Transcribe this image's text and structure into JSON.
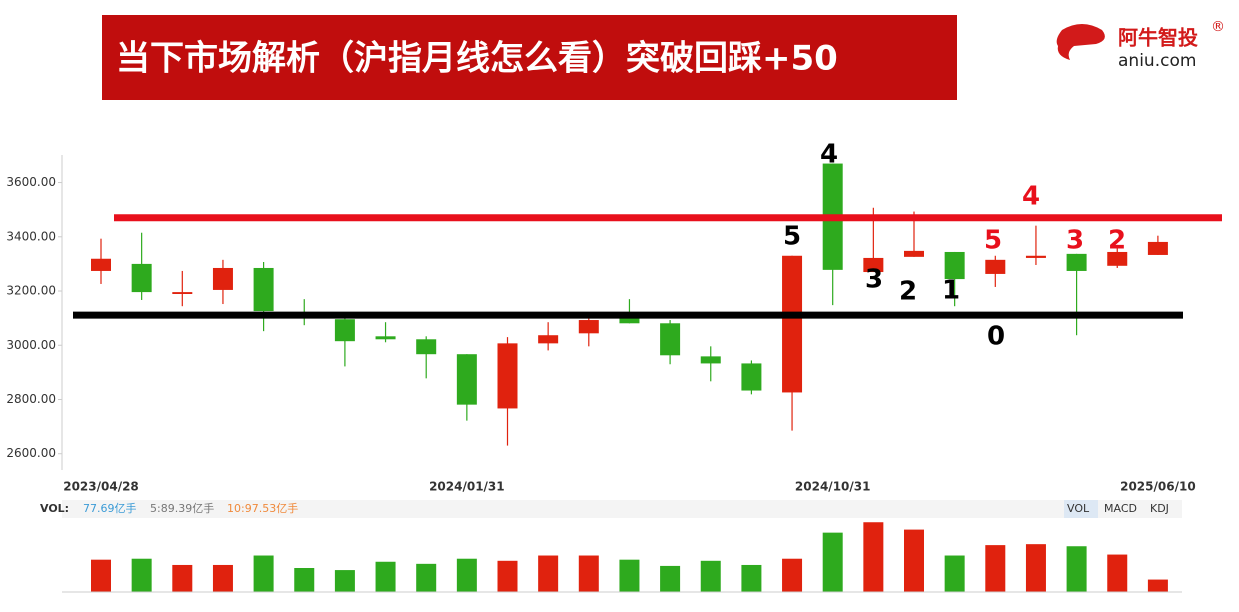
{
  "header": {
    "title": "当下市场解析（沪指月线怎么看）突破回踩+50",
    "logo_cn": "阿牛智投",
    "logo_mark": "®",
    "logo_en": "aniu.com"
  },
  "chart_data": [
    {
      "type": "candlestick",
      "up_color": "#e0220e",
      "down_color": "#2eaa1e",
      "categories": [
        "2023/04/28",
        null,
        null,
        null,
        null,
        null,
        null,
        null,
        null,
        "2024/01/31",
        null,
        null,
        null,
        null,
        null,
        null,
        null,
        null,
        "2024/10/31",
        null,
        null,
        null,
        null,
        null,
        null,
        null,
        "2025/06/10"
      ],
      "open": [
        3274,
        3300,
        3189,
        3204,
        3285,
        3119,
        3096,
        3033,
        3022,
        2967,
        2767,
        3007,
        3044,
        3100,
        3081,
        2959,
        2933,
        2826,
        3670,
        3270,
        3326,
        3344,
        3263,
        3322,
        3337,
        3293,
        3333
      ],
      "close": [
        3319,
        3196,
        3196,
        3285,
        3126,
        3107,
        3015,
        3022,
        2967,
        2781,
        3007,
        3037,
        3093,
        3081,
        2963,
        2933,
        2833,
        3330,
        3278,
        3322,
        3348,
        3244,
        3315,
        3330,
        3274,
        3344,
        3381
      ],
      "high": [
        3393,
        3415,
        3274,
        3315,
        3307,
        3170,
        3110,
        3085,
        3033,
        2967,
        3030,
        3085,
        3110,
        3170,
        3093,
        2996,
        2944,
        3330,
        3670,
        3507,
        3493,
        3344,
        3330,
        3441,
        3337,
        3370,
        3404
      ],
      "low": [
        3226,
        3167,
        3144,
        3152,
        3052,
        3074,
        2922,
        3011,
        2878,
        2722,
        2630,
        2981,
        2996,
        3081,
        2930,
        2867,
        2819,
        2685,
        3148,
        3270,
        3326,
        3144,
        3215,
        3296,
        3037,
        3285,
        3333
      ],
      "ylim": [
        2540,
        3720
      ],
      "yticks": [
        {
          "value": 2600,
          "label": "2600.00"
        },
        {
          "value": 2800,
          "label": "2800.00"
        },
        {
          "value": 3000,
          "label": "3000.00"
        },
        {
          "value": 3200,
          "label": "3200.00"
        },
        {
          "value": 3400,
          "label": "3400.00"
        },
        {
          "value": 3600,
          "label": "3600.00"
        }
      ],
      "hlines": [
        {
          "value": 3470,
          "color": "#e8101c"
        },
        {
          "value": 3111,
          "color": "#000000"
        }
      ],
      "annotations": [
        {
          "text": "4",
          "color": "#000000"
        },
        {
          "text": "5",
          "color": "#000000"
        },
        {
          "text": "3",
          "color": "#000000"
        },
        {
          "text": "2",
          "color": "#000000"
        },
        {
          "text": "1",
          "color": "#000000"
        },
        {
          "text": "0",
          "color": "#000000"
        },
        {
          "text": "5",
          "color": "#e8101c"
        },
        {
          "text": "4",
          "color": "#e8101c"
        },
        {
          "text": "3",
          "color": "#e8101c"
        },
        {
          "text": "2",
          "color": "#e8101c"
        }
      ]
    },
    {
      "type": "bar",
      "title": "VOL:",
      "legend": [
        "77.69亿手",
        "5:89.39亿手",
        "10:97.53亿手"
      ],
      "legend_colors": [
        "#3b9bd6",
        "#777777",
        "#f08a3c"
      ],
      "tabs": [
        "VOL",
        "MACD",
        "KDJ"
      ],
      "values": [
        202,
        208,
        169,
        169,
        228,
        150,
        137,
        189,
        176,
        208,
        195,
        228,
        228,
        202,
        163,
        195,
        169,
        208,
        371,
        436,
        390,
        228,
        293,
        299,
        286,
        234,
        77.69
      ],
      "ylim": [
        0,
        450
      ]
    }
  ]
}
